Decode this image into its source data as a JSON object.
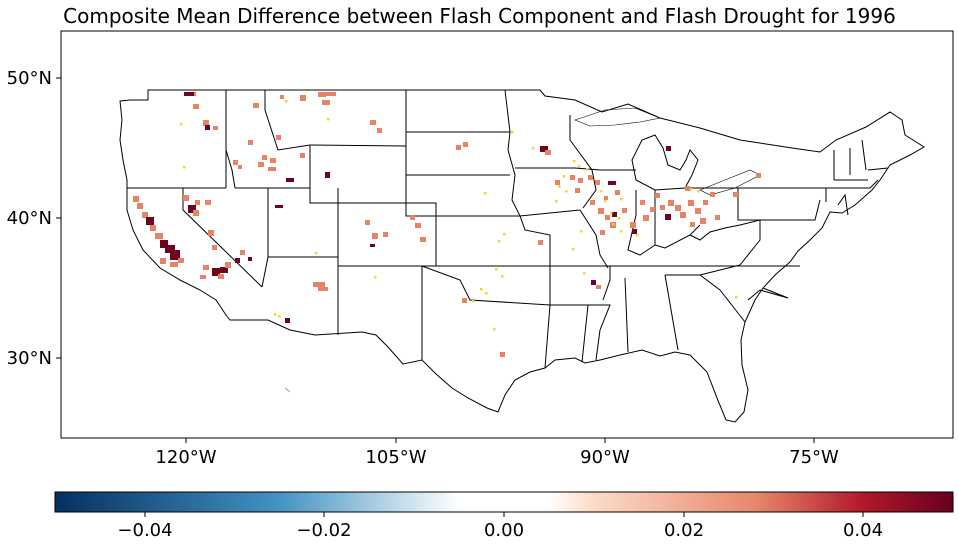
{
  "title": "Composite Mean Difference between Flash Component and Flash Drought for 1996",
  "axes": {
    "lat_ticks": [
      "50°N",
      "40°N",
      "30°N"
    ],
    "lon_ticks": [
      "120°W",
      "105°W",
      "90°W",
      "75°W"
    ]
  },
  "colorbar": {
    "ticks": [
      "−0.04",
      "−0.02",
      "0.00",
      "0.02",
      "0.04"
    ],
    "range": [
      -0.05,
      0.05
    ],
    "colors": {
      "neg_strong": "#053061",
      "neg_mid": "#4393c3",
      "neg_light": "#d1e5f0",
      "neutral": "#ffffff",
      "pos_light": "#fddbc7",
      "pos_mid": "#e7876b",
      "pos_strong": "#b2182b",
      "pos_max": "#67001f"
    }
  },
  "data_colors": {
    "salmon": "#e58467",
    "dark": "#6e0420",
    "yellow": "#f7d62a"
  }
}
